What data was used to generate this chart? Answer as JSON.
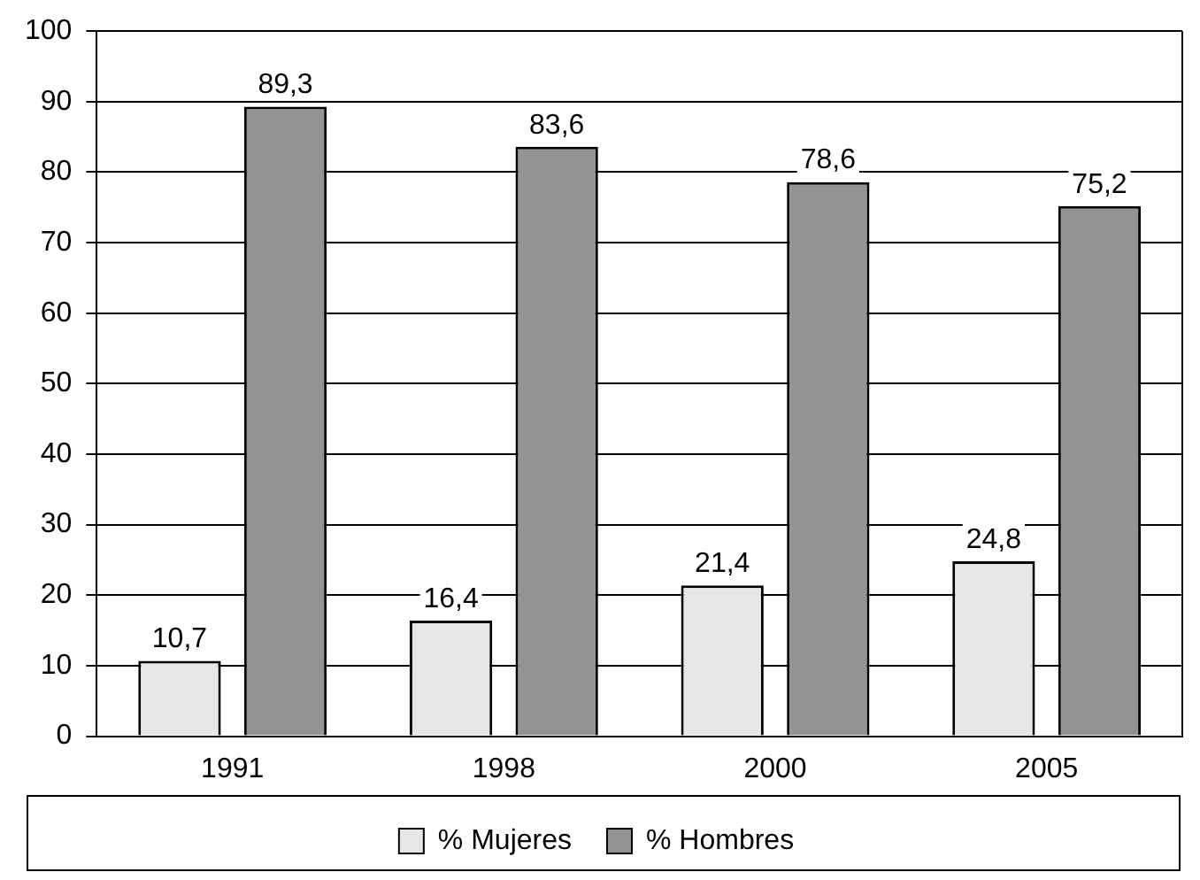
{
  "chart_data": {
    "type": "bar",
    "categories": [
      "1991",
      "1998",
      "2000",
      "2005"
    ],
    "series": [
      {
        "name": "% Mujeres",
        "color": "#e6e6e6",
        "values": [
          10.7,
          16.4,
          21.4,
          24.8
        ],
        "value_labels": [
          "10,7",
          "16,4",
          "21,4",
          "24,8"
        ]
      },
      {
        "name": "% Hombres",
        "color": "#939393",
        "values": [
          89.3,
          83.6,
          78.6,
          75.2
        ],
        "value_labels": [
          "89,3",
          "83,6",
          "78,6",
          "75,2"
        ]
      }
    ],
    "ylim": [
      0,
      100
    ],
    "yticks": [
      0,
      10,
      20,
      30,
      40,
      50,
      60,
      70,
      80,
      90,
      100
    ],
    "grid": "y",
    "legend": "bottom"
  }
}
